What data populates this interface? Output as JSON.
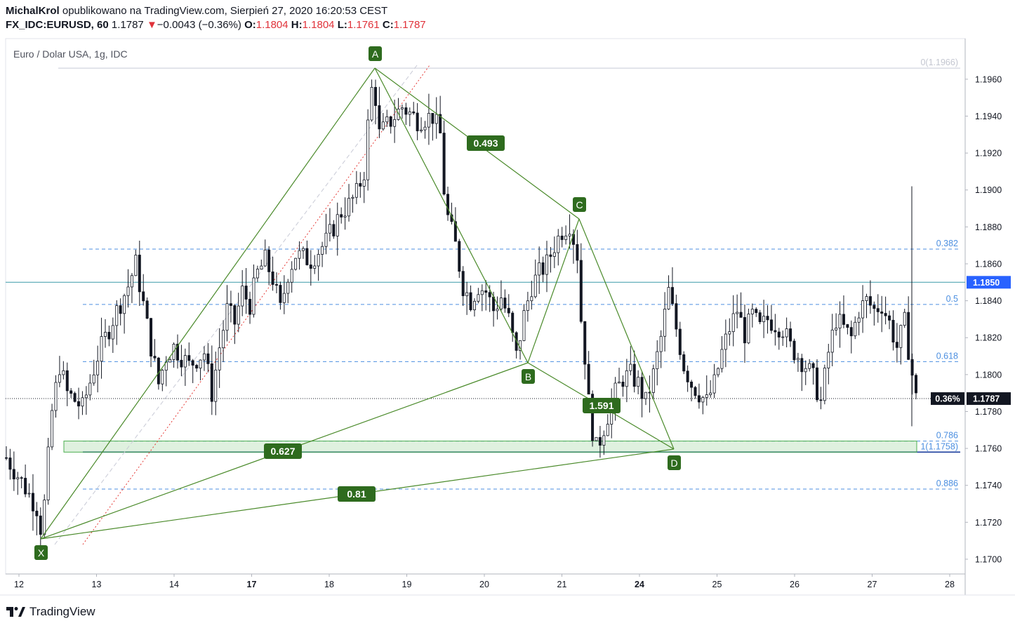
{
  "header": {
    "author": "MichalKrol",
    "published_text": "opublikowano na TradingView.com, Sierpień 27, 2020 16:20:53 CEST",
    "symbol": "FX_IDC:EURUSD, 60",
    "last": "1.1787",
    "change_arrow": "▼",
    "change": "−0.0043 (−0.36%)",
    "o_label": "O:",
    "o_value": "1.1804",
    "h_label": "H:",
    "h_value": "1.1804",
    "l_label": "L:",
    "l_value": "1.1761",
    "c_label": "C:",
    "c_value": "1.1787"
  },
  "footer": {
    "brand": "TradingView"
  },
  "chart_data": {
    "type": "candlestick",
    "title": "Euro / Dolar USA, 1g, IDC",
    "ylim": [
      1.1692,
      1.1982
    ],
    "y_ticks": [
      "1.1960",
      "1.1940",
      "1.1920",
      "1.1900",
      "1.1880",
      "1.1860",
      "1.1840",
      "1.1820",
      "1.1800",
      "1.1780",
      "1.1760",
      "1.1740",
      "1.1720",
      "1.1700"
    ],
    "x_ticks": [
      {
        "label": "12",
        "bold": false
      },
      {
        "label": "13",
        "bold": false
      },
      {
        "label": "14",
        "bold": false
      },
      {
        "label": "17",
        "bold": true
      },
      {
        "label": "18",
        "bold": false
      },
      {
        "label": "19",
        "bold": false
      },
      {
        "label": "20",
        "bold": false
      },
      {
        "label": "21",
        "bold": false
      },
      {
        "label": "24",
        "bold": true
      },
      {
        "label": "25",
        "bold": false
      },
      {
        "label": "26",
        "bold": false
      },
      {
        "label": "27",
        "bold": false
      },
      {
        "label": "28",
        "bold": false
      }
    ],
    "price_path": [
      [
        0,
        1.1755
      ],
      [
        2,
        1.1742
      ],
      [
        4,
        1.1728
      ],
      [
        4.3,
        1.1712
      ],
      [
        5,
        1.173
      ],
      [
        6,
        1.178
      ],
      [
        7,
        1.1805
      ],
      [
        8,
        1.179
      ],
      [
        10,
        1.1782
      ],
      [
        12,
        1.181
      ],
      [
        14,
        1.183
      ],
      [
        16,
        1.1848
      ],
      [
        17,
        1.186
      ],
      [
        18,
        1.1838
      ],
      [
        19,
        1.1815
      ],
      [
        20,
        1.1795
      ],
      [
        21,
        1.181
      ],
      [
        22,
        1.1815
      ],
      [
        24,
        1.1805
      ],
      [
        26,
        1.1812
      ],
      [
        27,
        1.179
      ],
      [
        28,
        1.1815
      ],
      [
        29,
        1.1835
      ],
      [
        30,
        1.1828
      ],
      [
        31,
        1.1845
      ],
      [
        32,
        1.1838
      ],
      [
        33,
        1.1855
      ],
      [
        34,
        1.1862
      ],
      [
        35,
        1.1852
      ],
      [
        36,
        1.1835
      ],
      [
        37,
        1.1855
      ],
      [
        38,
        1.1865
      ],
      [
        40,
        1.1862
      ],
      [
        42,
        1.1872
      ],
      [
        44,
        1.1888
      ],
      [
        45,
        1.1892
      ],
      [
        46,
        1.1898
      ],
      [
        47,
        1.191
      ],
      [
        47.5,
        1.1935
      ],
      [
        48.2,
        1.1962
      ],
      [
        49,
        1.193
      ],
      [
        50,
        1.1935
      ],
      [
        52,
        1.1945
      ],
      [
        54,
        1.1938
      ],
      [
        56,
        1.194
      ],
      [
        57,
        1.193
      ],
      [
        57.5,
        1.19
      ],
      [
        58,
        1.1885
      ],
      [
        59,
        1.187
      ],
      [
        60,
        1.1848
      ],
      [
        61,
        1.184
      ],
      [
        62,
        1.1848
      ],
      [
        63,
        1.1845
      ],
      [
        64,
        1.1835
      ],
      [
        65,
        1.1842
      ],
      [
        66,
        1.183
      ],
      [
        67,
        1.181
      ],
      [
        68,
        1.1832
      ],
      [
        69,
        1.1848
      ],
      [
        70,
        1.1855
      ],
      [
        71,
        1.186
      ],
      [
        72,
        1.187
      ],
      [
        73,
        1.1878
      ],
      [
        74,
        1.1882
      ],
      [
        75,
        1.1865
      ],
      [
        75.5,
        1.183
      ],
      [
        76,
        1.181
      ],
      [
        76.5,
        1.1785
      ],
      [
        77,
        1.177
      ],
      [
        77.5,
        1.176
      ],
      [
        78,
        1.1765
      ],
      [
        79,
        1.1778
      ],
      [
        80,
        1.179
      ],
      [
        81,
        1.1798
      ],
      [
        82,
        1.18
      ],
      [
        83,
        1.1795
      ],
      [
        84,
        1.1785
      ],
      [
        85,
        1.18
      ],
      [
        86,
        1.182
      ],
      [
        87,
        1.1845
      ],
      [
        88,
        1.1825
      ],
      [
        89,
        1.1805
      ],
      [
        90,
        1.1795
      ],
      [
        91,
        1.179
      ],
      [
        92,
        1.1785
      ],
      [
        93,
        1.1795
      ],
      [
        94,
        1.1812
      ],
      [
        95,
        1.1825
      ],
      [
        96,
        1.1835
      ],
      [
        97,
        1.1822
      ],
      [
        98,
        1.1832
      ],
      [
        99,
        1.1825
      ],
      [
        100,
        1.183
      ],
      [
        102,
        1.1825
      ],
      [
        103,
        1.1815
      ],
      [
        104,
        1.181
      ],
      [
        105,
        1.1805
      ],
      [
        106,
        1.1798
      ],
      [
        107,
        1.1785
      ],
      [
        108,
        1.1812
      ],
      [
        109,
        1.183
      ],
      [
        110,
        1.1825
      ],
      [
        111,
        1.182
      ],
      [
        112,
        1.1835
      ],
      [
        113,
        1.184
      ],
      [
        114,
        1.1835
      ],
      [
        115,
        1.1838
      ],
      [
        116,
        1.1828
      ],
      [
        117,
        1.1815
      ],
      [
        118,
        1.1828
      ],
      [
        119,
        1.18
      ],
      [
        119.5,
        1.1787
      ]
    ],
    "harmonic_pattern": {
      "points": [
        {
          "label": "X",
          "price": 1.1712
        },
        {
          "label": "A",
          "price": 1.1965
        },
        {
          "label": "B",
          "price": 1.1806
        },
        {
          "label": "C",
          "price": 1.1883
        },
        {
          "label": "D",
          "price": 1.176
        }
      ],
      "ratios": [
        "0.493",
        "1.591",
        "0.627",
        "0.81"
      ]
    },
    "fib_levels": [
      {
        "label": "0(1.1966)",
        "price": 1.1966
      },
      {
        "label": "0.382",
        "price": 1.1868
      },
      {
        "label": "0.5",
        "price": 1.1838
      },
      {
        "label": "0.618",
        "price": 1.1807
      },
      {
        "label": "0.786",
        "price": 1.1764
      },
      {
        "label": "1(1.1758)",
        "price": 1.1758
      },
      {
        "label": "0.886",
        "price": 1.1738
      }
    ],
    "horizontal_line": {
      "label": "1.1850",
      "price": 1.185
    },
    "last_price": {
      "label": "1.1787",
      "change_label": "0.36%",
      "price": 1.1787
    },
    "zone": {
      "from": 1.1758,
      "to": 1.1764
    }
  }
}
